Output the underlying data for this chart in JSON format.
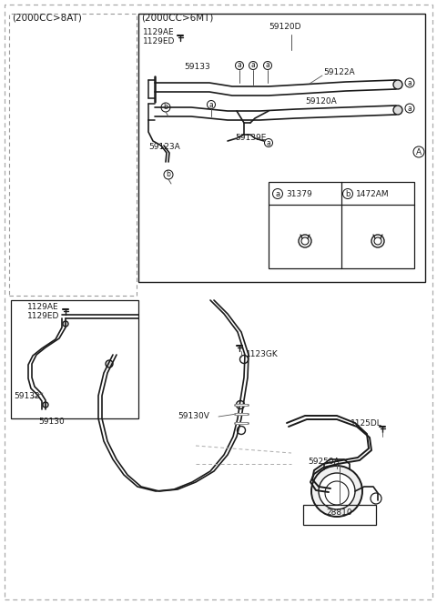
{
  "bg_color": "#ffffff",
  "line_color": "#1a1a1a",
  "gray_line": "#666666",
  "light_gray": "#999999",
  "labels": {
    "top_left_box": "(2000CC>8AT)",
    "top_right_box": "(2000CC>6MT)",
    "l1129AE_u": "1129AE",
    "l1129ED_u": "1129ED",
    "l59120D": "59120D",
    "l59133": "59133",
    "l59122A": "59122A",
    "l59120A": "59120A",
    "l59123A": "59123A",
    "l59139E": "59139E",
    "l31379": "31379",
    "l1472AM": "1472AM",
    "l1129AE_l": "1129AE",
    "l1129ED_l": "1129ED",
    "l59132": "59132",
    "l59130": "59130",
    "l1123GK": "1123GK",
    "l59130V": "59130V",
    "l1125DL": "1125DL",
    "l59250A": "59250A",
    "l28810": "28810"
  },
  "fs": 6.5,
  "fsh": 7.5
}
